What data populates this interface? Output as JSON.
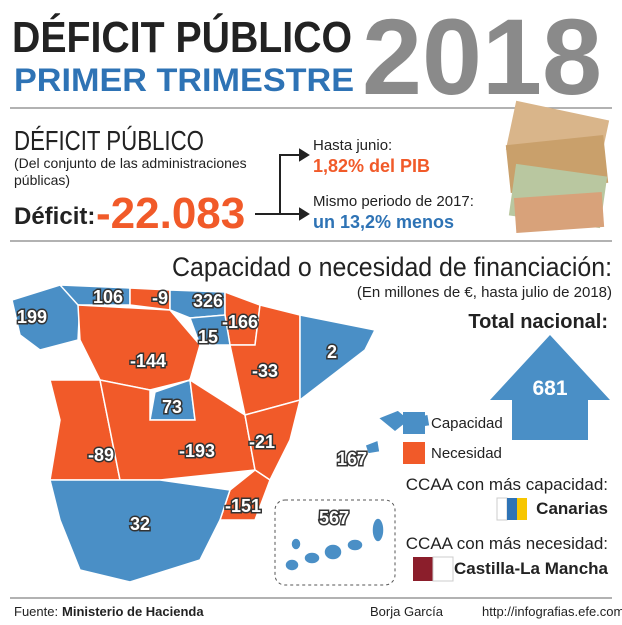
{
  "header": {
    "title": "DÉFICIT PÚBLICO",
    "subtitle": "PRIMER TRIMESTRE",
    "year": "2018"
  },
  "deficit": {
    "title": "DÉFICIT PÚBLICO",
    "note": [
      "(Del conjunto de las administraciones",
      "públicas)"
    ],
    "label": "Déficit:",
    "value": "-22.083",
    "callouts": [
      {
        "label": "Hasta junio:",
        "value": "1,82% del PIB"
      },
      {
        "label": "Mismo periodo de 2017:",
        "value": "un 13,2% menos"
      }
    ]
  },
  "map": {
    "title": "Capacidad o necesidad de financiación:",
    "subtitle": "(En millones de €, hasta julio de 2018)",
    "total_label": "Total nacional:",
    "total_value": 681,
    "legend": [
      {
        "label": "Capacidad",
        "color": "#4a8fc6"
      },
      {
        "label": "Necesidad",
        "color": "#f15a29"
      }
    ],
    "regions": [
      199,
      106,
      -9,
      326,
      -166,
      15,
      -33,
      2,
      -144,
      73,
      -89,
      -193,
      -21,
      -151,
      32,
      167,
      567
    ],
    "most_capacity": {
      "label": "CCAA con más capacidad:",
      "name": "Canarias"
    },
    "most_need": {
      "label": "CCAA con más necesidad:",
      "name": "Castilla-La Mancha"
    }
  },
  "footer": {
    "source_label": "Fuente:",
    "source": "Ministerio de Hacienda",
    "author": "Borja García",
    "url": "http://infografias.efe.com"
  }
}
